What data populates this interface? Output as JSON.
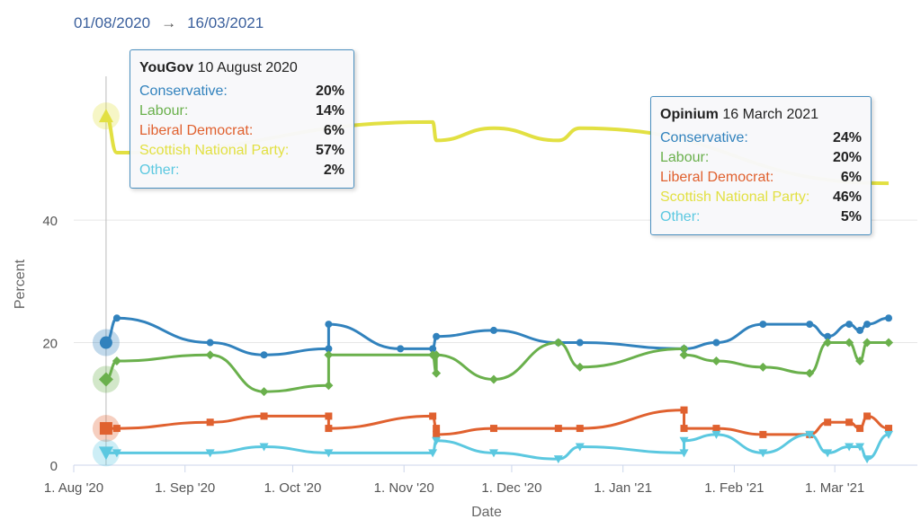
{
  "range": {
    "start": "01/08/2020",
    "arrow": "→",
    "end": "16/03/2021"
  },
  "tooltips": [
    {
      "pollster": "YouGov",
      "date": "10 August 2020",
      "rows": [
        {
          "party": "Conservative:",
          "value": "20%",
          "color": "#3182bd"
        },
        {
          "party": "Labour:",
          "value": "14%",
          "color": "#6ab04c"
        },
        {
          "party": "Liberal Democrat:",
          "value": "6%",
          "color": "#e0612f"
        },
        {
          "party": "Scottish National Party:",
          "value": "57%",
          "color": "#e2e042"
        },
        {
          "party": "Other:",
          "value": "2%",
          "color": "#5bc8e0"
        }
      ]
    },
    {
      "pollster": "Opinium",
      "date": "16 March 2021",
      "rows": [
        {
          "party": "Conservative:",
          "value": "24%",
          "color": "#3182bd"
        },
        {
          "party": "Labour:",
          "value": "20%",
          "color": "#6ab04c"
        },
        {
          "party": "Liberal Democrat:",
          "value": "6%",
          "color": "#e0612f"
        },
        {
          "party": "Scottish National Party:",
          "value": "46%",
          "color": "#e2e042"
        },
        {
          "party": "Other:",
          "value": "5%",
          "color": "#5bc8e0"
        }
      ]
    }
  ],
  "chart_data": {
    "type": "line",
    "xlabel": "Date",
    "ylabel": "Percent",
    "x_ticks": [
      "1. Aug '20",
      "1. Sep '20",
      "1. Oct '20",
      "1. Nov '20",
      "1. Dec '20",
      "1. Jan '21",
      "1. Feb '21",
      "1. Mar '21"
    ],
    "x_tick_dates": [
      "2020-08-01",
      "2020-09-01",
      "2020-10-01",
      "2020-11-01",
      "2020-12-01",
      "2021-01-01",
      "2021-02-01",
      "2021-03-01"
    ],
    "y_ticks": [
      0,
      20,
      40
    ],
    "ylim": [
      0,
      62
    ],
    "xlim": [
      "2020-08-01",
      "2021-03-19"
    ],
    "series": [
      {
        "name": "Conservative",
        "color": "#3182bd",
        "marker": "circle",
        "points": [
          [
            "2020-08-10",
            20
          ],
          [
            "2020-08-13",
            24
          ],
          [
            "2020-09-08",
            20
          ],
          [
            "2020-09-23",
            18
          ],
          [
            "2020-10-11",
            19
          ],
          [
            "2020-10-11",
            23
          ],
          [
            "2020-10-31",
            19
          ],
          [
            "2020-11-09",
            19
          ],
          [
            "2020-11-10",
            21
          ],
          [
            "2020-11-26",
            22
          ],
          [
            "2020-12-14",
            20
          ],
          [
            "2020-12-20",
            20
          ],
          [
            "2021-01-18",
            19
          ],
          [
            "2021-01-27",
            20
          ],
          [
            "2021-02-09",
            23
          ],
          [
            "2021-02-22",
            23
          ],
          [
            "2021-02-27",
            21
          ],
          [
            "2021-03-05",
            23
          ],
          [
            "2021-03-08",
            22
          ],
          [
            "2021-03-10",
            23
          ],
          [
            "2021-03-16",
            24
          ]
        ]
      },
      {
        "name": "Labour",
        "color": "#6ab04c",
        "marker": "diamond",
        "points": [
          [
            "2020-08-10",
            14
          ],
          [
            "2020-08-13",
            17
          ],
          [
            "2020-09-08",
            18
          ],
          [
            "2020-09-23",
            12
          ],
          [
            "2020-10-11",
            13
          ],
          [
            "2020-10-11",
            18
          ],
          [
            "2020-11-09",
            18
          ],
          [
            "2020-11-10",
            15
          ],
          [
            "2020-11-10",
            18
          ],
          [
            "2020-11-26",
            14
          ],
          [
            "2020-12-14",
            20
          ],
          [
            "2020-12-20",
            16
          ],
          [
            "2021-01-18",
            19
          ],
          [
            "2021-01-18",
            18
          ],
          [
            "2021-01-27",
            17
          ],
          [
            "2021-02-09",
            16
          ],
          [
            "2021-02-22",
            15
          ],
          [
            "2021-02-27",
            20
          ],
          [
            "2021-03-05",
            20
          ],
          [
            "2021-03-08",
            17
          ],
          [
            "2021-03-10",
            20
          ],
          [
            "2021-03-16",
            20
          ]
        ]
      },
      {
        "name": "Liberal Democrat",
        "color": "#e0612f",
        "marker": "square",
        "points": [
          [
            "2020-08-10",
            6
          ],
          [
            "2020-08-13",
            6
          ],
          [
            "2020-09-08",
            7
          ],
          [
            "2020-09-23",
            8
          ],
          [
            "2020-10-11",
            8
          ],
          [
            "2020-10-11",
            6
          ],
          [
            "2020-11-09",
            8
          ],
          [
            "2020-11-10",
            6
          ],
          [
            "2020-11-10",
            5
          ],
          [
            "2020-11-26",
            6
          ],
          [
            "2020-12-14",
            6
          ],
          [
            "2020-12-20",
            6
          ],
          [
            "2021-01-18",
            9
          ],
          [
            "2021-01-18",
            6
          ],
          [
            "2021-01-27",
            6
          ],
          [
            "2021-02-09",
            5
          ],
          [
            "2021-02-22",
            5
          ],
          [
            "2021-02-27",
            7
          ],
          [
            "2021-03-05",
            7
          ],
          [
            "2021-03-08",
            6
          ],
          [
            "2021-03-10",
            8
          ],
          [
            "2021-03-16",
            6
          ]
        ]
      },
      {
        "name": "Scottish National Party",
        "color": "#e2e042",
        "marker": "triangle",
        "points": [
          [
            "2020-08-10",
            57
          ],
          [
            "2020-08-13",
            51
          ],
          [
            "2020-11-09",
            56
          ],
          [
            "2020-11-10",
            53
          ],
          [
            "2020-11-26",
            55
          ],
          [
            "2020-12-14",
            53
          ],
          [
            "2020-12-20",
            55
          ],
          [
            "2021-03-16",
            46
          ]
        ]
      },
      {
        "name": "Other",
        "color": "#5bc8e0",
        "marker": "triangle-down",
        "points": [
          [
            "2020-08-10",
            2
          ],
          [
            "2020-08-13",
            2
          ],
          [
            "2020-09-08",
            2
          ],
          [
            "2020-09-23",
            3
          ],
          [
            "2020-10-11",
            2
          ],
          [
            "2020-11-09",
            2
          ],
          [
            "2020-11-10",
            4
          ],
          [
            "2020-11-26",
            2
          ],
          [
            "2020-12-14",
            1
          ],
          [
            "2020-12-20",
            3
          ],
          [
            "2021-01-18",
            2
          ],
          [
            "2021-01-18",
            4
          ],
          [
            "2021-01-27",
            5
          ],
          [
            "2021-02-09",
            2
          ],
          [
            "2021-02-22",
            5
          ],
          [
            "2021-02-27",
            2
          ],
          [
            "2021-03-05",
            3
          ],
          [
            "2021-03-08",
            3
          ],
          [
            "2021-03-10",
            1
          ],
          [
            "2021-03-16",
            5
          ]
        ]
      }
    ],
    "highlight_date": "2020-08-10"
  }
}
